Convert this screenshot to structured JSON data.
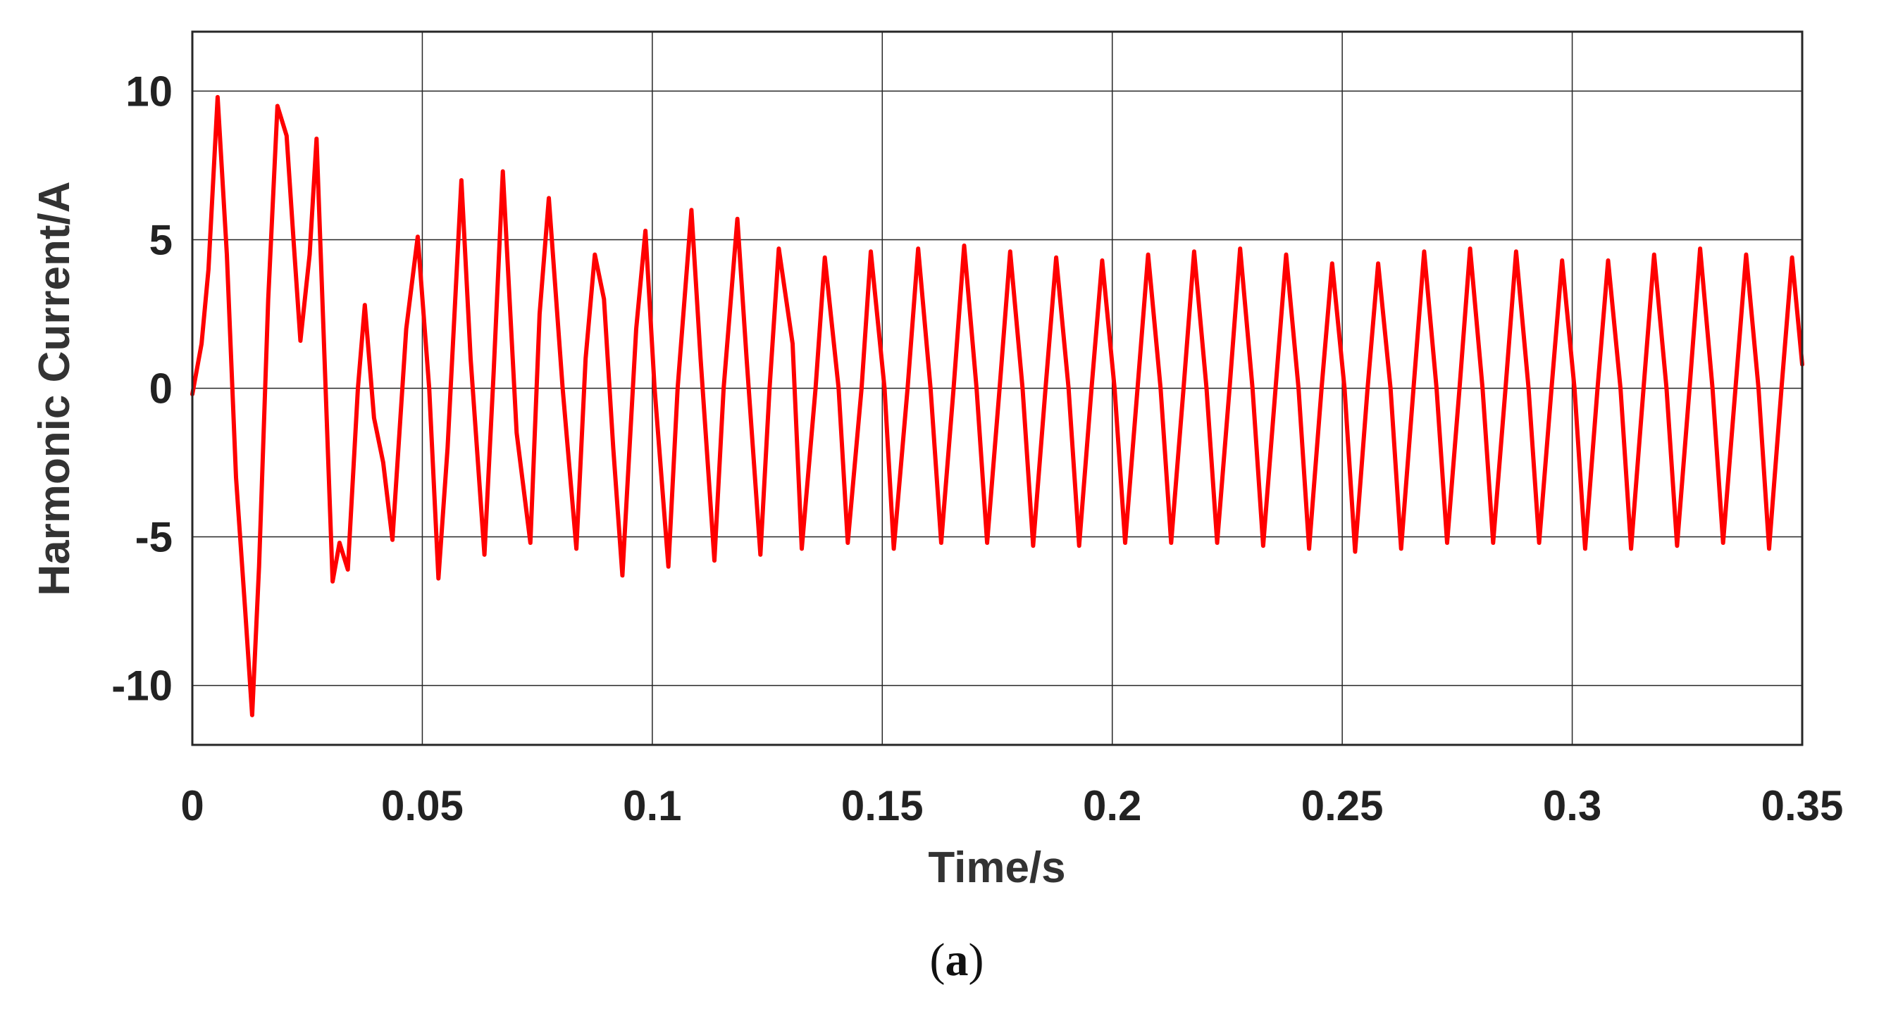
{
  "caption": {
    "open": "(",
    "letter": "a",
    "close": ")"
  },
  "chart_data": {
    "type": "line",
    "title": "",
    "xlabel": "Time/s",
    "ylabel": "Harmonic Current/A",
    "xlim": [
      0,
      0.35
    ],
    "ylim": [
      -12,
      12
    ],
    "xticks": [
      0,
      0.05,
      0.1,
      0.15,
      0.2,
      0.25,
      0.3,
      0.35
    ],
    "xtick_labels": [
      "0",
      "0.05",
      "0.1",
      "0.15",
      "0.2",
      "0.25",
      "0.3",
      "0.35"
    ],
    "yticks": [
      -10,
      -5,
      0,
      5,
      10
    ],
    "ytick_labels": [
      "-10",
      "-5",
      "0",
      "5",
      "10"
    ],
    "grid": true,
    "legend": "none",
    "colors": {
      "series": "#ff0000",
      "grid": "#262626",
      "axes": "#262626"
    },
    "series": [
      {
        "name": "",
        "color": "#ff0000",
        "points": [
          [
            0.0,
            -0.2
          ],
          [
            0.002,
            1.5
          ],
          [
            0.0035,
            4.0
          ],
          [
            0.0055,
            9.8
          ],
          [
            0.0075,
            4.5
          ],
          [
            0.0095,
            -3.0
          ],
          [
            0.0115,
            -7.5
          ],
          [
            0.013,
            -11.0
          ],
          [
            0.0145,
            -6.0
          ],
          [
            0.0165,
            3.0
          ],
          [
            0.0185,
            9.5
          ],
          [
            0.0205,
            8.5
          ],
          [
            0.022,
            5.0
          ],
          [
            0.0235,
            1.6
          ],
          [
            0.0255,
            4.5
          ],
          [
            0.027,
            8.4
          ],
          [
            0.0285,
            2.0
          ],
          [
            0.0305,
            -6.5
          ],
          [
            0.032,
            -5.2
          ],
          [
            0.0338,
            -6.1
          ],
          [
            0.036,
            0.0
          ],
          [
            0.0375,
            2.8
          ],
          [
            0.0395,
            -1.0
          ],
          [
            0.0415,
            -2.5
          ],
          [
            0.0435,
            -5.1
          ],
          [
            0.0465,
            2.0
          ],
          [
            0.049,
            5.1
          ],
          [
            0.0515,
            0.0
          ],
          [
            0.0535,
            -6.4
          ],
          [
            0.0555,
            -2.0
          ],
          [
            0.0585,
            7.0
          ],
          [
            0.0605,
            1.0
          ],
          [
            0.0635,
            -5.6
          ],
          [
            0.0655,
            0.5
          ],
          [
            0.0675,
            7.3
          ],
          [
            0.0705,
            -1.5
          ],
          [
            0.0735,
            -5.2
          ],
          [
            0.0755,
            2.5
          ],
          [
            0.0775,
            6.4
          ],
          [
            0.0805,
            0.0
          ],
          [
            0.0835,
            -5.4
          ],
          [
            0.0855,
            1.0
          ],
          [
            0.0875,
            4.5
          ],
          [
            0.0895,
            3.0
          ],
          [
            0.0915,
            -2.0
          ],
          [
            0.0935,
            -6.3
          ],
          [
            0.0965,
            2.0
          ],
          [
            0.0985,
            5.3
          ],
          [
            0.1005,
            0.0
          ],
          [
            0.1035,
            -6.0
          ],
          [
            0.1055,
            0.0
          ],
          [
            0.1085,
            6.0
          ],
          [
            0.1105,
            1.0
          ],
          [
            0.1135,
            -5.8
          ],
          [
            0.1155,
            0.0
          ],
          [
            0.1185,
            5.7
          ],
          [
            0.1205,
            1.0
          ],
          [
            0.1235,
            -5.6
          ],
          [
            0.1255,
            0.0
          ],
          [
            0.1275,
            4.7
          ],
          [
            0.1305,
            1.5
          ],
          [
            0.1325,
            -5.4
          ],
          [
            0.1355,
            0.0
          ],
          [
            0.1375,
            4.4
          ],
          [
            0.1405,
            0.0
          ],
          [
            0.1425,
            -5.2
          ],
          [
            0.1455,
            0.0
          ],
          [
            0.1475,
            4.6
          ],
          [
            0.1505,
            0.0
          ],
          [
            0.1525,
            -5.4
          ],
          [
            0.1555,
            0.0
          ],
          [
            0.1578,
            4.7
          ],
          [
            0.1605,
            0.0
          ],
          [
            0.1628,
            -5.2
          ],
          [
            0.1655,
            0.0
          ],
          [
            0.1678,
            4.8
          ],
          [
            0.1705,
            0.0
          ],
          [
            0.1728,
            -5.2
          ],
          [
            0.1755,
            0.0
          ],
          [
            0.1778,
            4.6
          ],
          [
            0.1805,
            0.0
          ],
          [
            0.1828,
            -5.3
          ],
          [
            0.1855,
            0.0
          ],
          [
            0.1878,
            4.4
          ],
          [
            0.1905,
            0.0
          ],
          [
            0.1928,
            -5.3
          ],
          [
            0.1955,
            0.0
          ],
          [
            0.1978,
            4.3
          ],
          [
            0.2005,
            0.0
          ],
          [
            0.2028,
            -5.2
          ],
          [
            0.2055,
            0.0
          ],
          [
            0.2078,
            4.5
          ],
          [
            0.2105,
            0.0
          ],
          [
            0.2128,
            -5.2
          ],
          [
            0.2155,
            0.0
          ],
          [
            0.2178,
            4.6
          ],
          [
            0.2205,
            0.0
          ],
          [
            0.2228,
            -5.2
          ],
          [
            0.2255,
            0.0
          ],
          [
            0.2278,
            4.7
          ],
          [
            0.2305,
            0.0
          ],
          [
            0.2328,
            -5.3
          ],
          [
            0.2355,
            0.0
          ],
          [
            0.2378,
            4.5
          ],
          [
            0.2405,
            0.0
          ],
          [
            0.2428,
            -5.4
          ],
          [
            0.2455,
            0.0
          ],
          [
            0.2478,
            4.2
          ],
          [
            0.2505,
            0.0
          ],
          [
            0.2528,
            -5.5
          ],
          [
            0.2555,
            0.0
          ],
          [
            0.2578,
            4.2
          ],
          [
            0.2605,
            0.0
          ],
          [
            0.2628,
            -5.4
          ],
          [
            0.2655,
            0.0
          ],
          [
            0.2678,
            4.6
          ],
          [
            0.2705,
            0.0
          ],
          [
            0.2728,
            -5.2
          ],
          [
            0.2755,
            0.0
          ],
          [
            0.2778,
            4.7
          ],
          [
            0.2805,
            0.0
          ],
          [
            0.2828,
            -5.2
          ],
          [
            0.2855,
            0.0
          ],
          [
            0.2878,
            4.6
          ],
          [
            0.2905,
            0.0
          ],
          [
            0.2928,
            -5.2
          ],
          [
            0.2955,
            0.0
          ],
          [
            0.2978,
            4.3
          ],
          [
            0.3005,
            0.0
          ],
          [
            0.3028,
            -5.4
          ],
          [
            0.3055,
            0.0
          ],
          [
            0.3078,
            4.3
          ],
          [
            0.3105,
            0.0
          ],
          [
            0.3128,
            -5.4
          ],
          [
            0.3155,
            0.0
          ],
          [
            0.3178,
            4.5
          ],
          [
            0.3205,
            0.0
          ],
          [
            0.3228,
            -5.3
          ],
          [
            0.3255,
            0.0
          ],
          [
            0.3278,
            4.7
          ],
          [
            0.3305,
            0.0
          ],
          [
            0.3328,
            -5.2
          ],
          [
            0.3355,
            0.0
          ],
          [
            0.3378,
            4.5
          ],
          [
            0.3405,
            0.0
          ],
          [
            0.3428,
            -5.4
          ],
          [
            0.3455,
            0.0
          ],
          [
            0.3478,
            4.4
          ],
          [
            0.35,
            0.8
          ]
        ]
      }
    ]
  }
}
